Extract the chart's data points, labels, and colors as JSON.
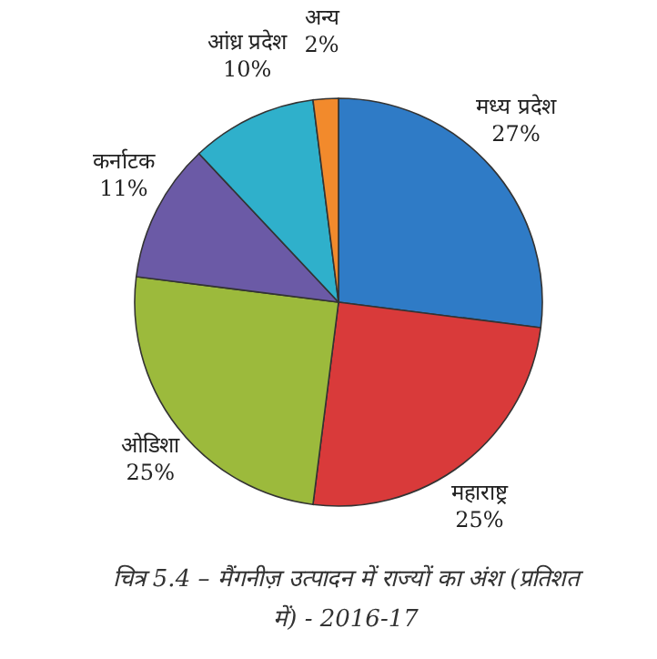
{
  "chart_data": {
    "type": "pie",
    "title": "चित्र 5.4 – मैंगनीज़ उत्पादन में राज्यों का अंश (प्रतिशत में) - 2016-17",
    "categories": [
      "मध्य प्रदेश",
      "महाराष्ट्र",
      "ओडिशा",
      "कर्नाटक",
      "आंध्र प्रदेश",
      "अन्य"
    ],
    "values": [
      27,
      25,
      25,
      11,
      10,
      2
    ],
    "value_labels": [
      "27%",
      "25%",
      "25%",
      "11%",
      "10%",
      "2%"
    ],
    "colors": [
      "#2f7bc6",
      "#d93a3a",
      "#9cba3c",
      "#6b5aa6",
      "#2fb0cb",
      "#f28a2c"
    ]
  }
}
